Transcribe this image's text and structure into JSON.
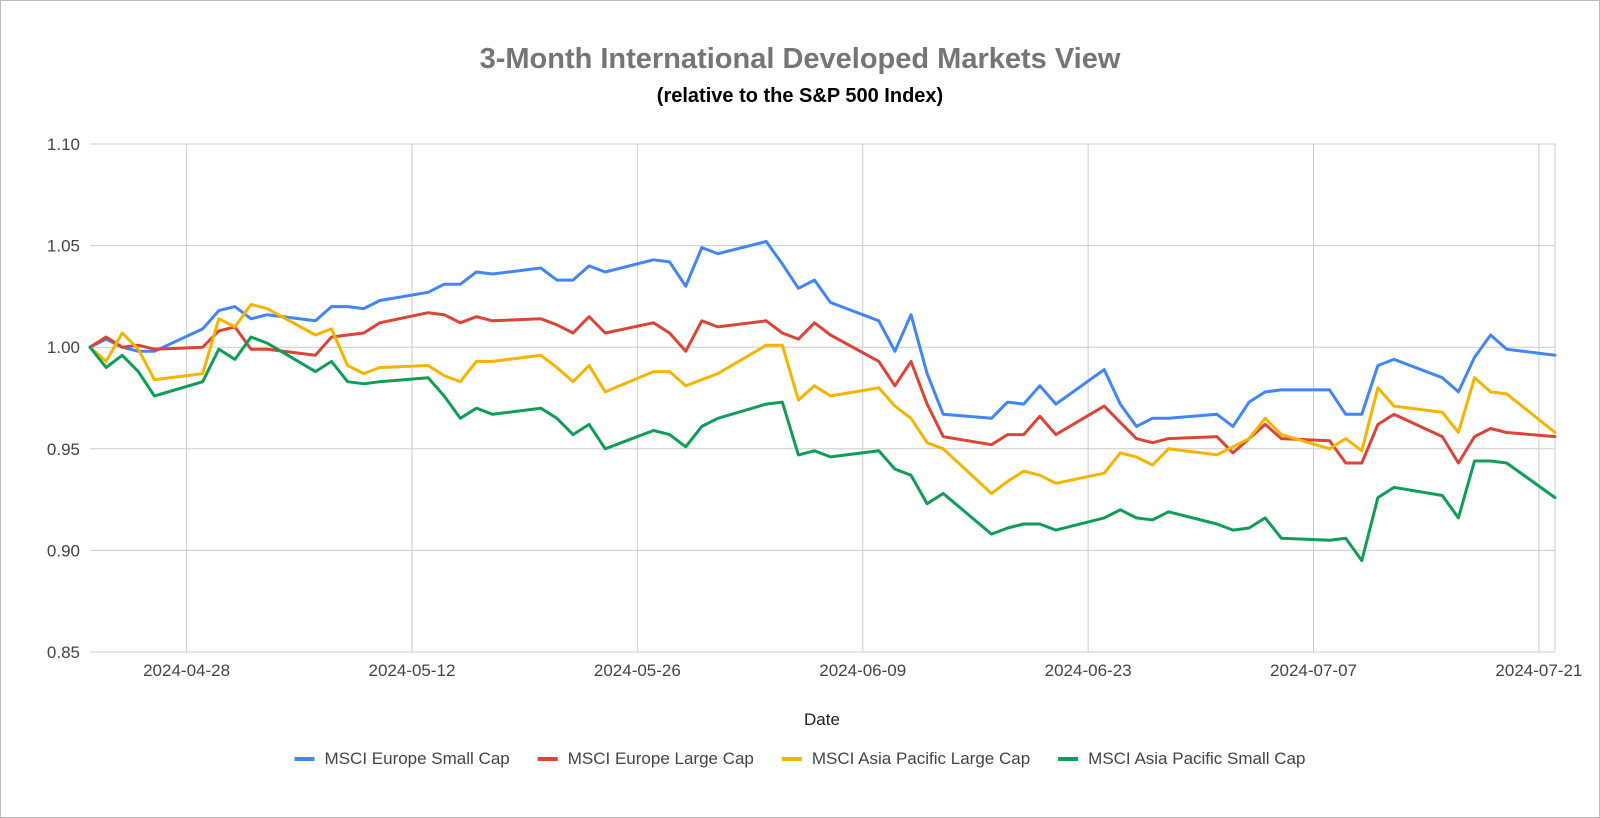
{
  "chart_data": {
    "type": "line",
    "title": "3-Month International Developed Markets View",
    "subtitle": "(relative to the S&P 500 Index)",
    "xlabel": "Date",
    "ylabel": "",
    "ylim": [
      0.85,
      1.1
    ],
    "yticks": [
      "1.10",
      "1.05",
      "1.00",
      "0.95",
      "0.90",
      "0.85"
    ],
    "ytick_values": [
      1.1,
      1.05,
      1.0,
      0.95,
      0.9,
      0.85
    ],
    "xticks": [
      "2024-04-28",
      "2024-05-12",
      "2024-05-26",
      "2024-06-09",
      "2024-06-23",
      "2024-07-07",
      "2024-07-21"
    ],
    "x_range": [
      "2024-04-22",
      "2024-07-22"
    ],
    "grid": true,
    "legend_position": "bottom",
    "series": [
      {
        "name": "MSCI Europe Small Cap",
        "color": "#4285f4",
        "points": [
          [
            "2024-04-22",
            1.0
          ],
          [
            "2024-04-23",
            1.004
          ],
          [
            "2024-04-24",
            1.0
          ],
          [
            "2024-04-25",
            0.998
          ],
          [
            "2024-04-26",
            0.998
          ],
          [
            "2024-04-29",
            1.009
          ],
          [
            "2024-04-30",
            1.018
          ],
          [
            "2024-05-01",
            1.02
          ],
          [
            "2024-05-02",
            1.014
          ],
          [
            "2024-05-03",
            1.016
          ],
          [
            "2024-05-06",
            1.013
          ],
          [
            "2024-05-07",
            1.02
          ],
          [
            "2024-05-08",
            1.02
          ],
          [
            "2024-05-09",
            1.019
          ],
          [
            "2024-05-10",
            1.023
          ],
          [
            "2024-05-13",
            1.027
          ],
          [
            "2024-05-14",
            1.031
          ],
          [
            "2024-05-15",
            1.031
          ],
          [
            "2024-05-16",
            1.037
          ],
          [
            "2024-05-17",
            1.036
          ],
          [
            "2024-05-20",
            1.039
          ],
          [
            "2024-05-21",
            1.033
          ],
          [
            "2024-05-22",
            1.033
          ],
          [
            "2024-05-23",
            1.04
          ],
          [
            "2024-05-24",
            1.037
          ],
          [
            "2024-05-27",
            1.043
          ],
          [
            "2024-05-28",
            1.042
          ],
          [
            "2024-05-29",
            1.03
          ],
          [
            "2024-05-30",
            1.049
          ],
          [
            "2024-05-31",
            1.046
          ],
          [
            "2024-06-03",
            1.052
          ],
          [
            "2024-06-04",
            1.041
          ],
          [
            "2024-06-05",
            1.029
          ],
          [
            "2024-06-06",
            1.033
          ],
          [
            "2024-06-07",
            1.022
          ],
          [
            "2024-06-10",
            1.013
          ],
          [
            "2024-06-11",
            0.998
          ],
          [
            "2024-06-12",
            1.016
          ],
          [
            "2024-06-13",
            0.987
          ],
          [
            "2024-06-14",
            0.967
          ],
          [
            "2024-06-17",
            0.965
          ],
          [
            "2024-06-18",
            0.973
          ],
          [
            "2024-06-19",
            0.972
          ],
          [
            "2024-06-20",
            0.981
          ],
          [
            "2024-06-21",
            0.972
          ],
          [
            "2024-06-24",
            0.989
          ],
          [
            "2024-06-25",
            0.972
          ],
          [
            "2024-06-26",
            0.961
          ],
          [
            "2024-06-27",
            0.965
          ],
          [
            "2024-06-28",
            0.965
          ],
          [
            "2024-07-01",
            0.967
          ],
          [
            "2024-07-02",
            0.961
          ],
          [
            "2024-07-03",
            0.973
          ],
          [
            "2024-07-04",
            0.978
          ],
          [
            "2024-07-05",
            0.979
          ],
          [
            "2024-07-08",
            0.979
          ],
          [
            "2024-07-09",
            0.967
          ],
          [
            "2024-07-10",
            0.967
          ],
          [
            "2024-07-11",
            0.991
          ],
          [
            "2024-07-12",
            0.994
          ],
          [
            "2024-07-15",
            0.985
          ],
          [
            "2024-07-16",
            0.978
          ],
          [
            "2024-07-17",
            0.995
          ],
          [
            "2024-07-18",
            1.006
          ],
          [
            "2024-07-19",
            0.999
          ],
          [
            "2024-07-22",
            0.996
          ]
        ]
      },
      {
        "name": "MSCI Europe Large Cap",
        "color": "#db4437",
        "points": [
          [
            "2024-04-22",
            1.0
          ],
          [
            "2024-04-23",
            1.005
          ],
          [
            "2024-04-24",
            1.0
          ],
          [
            "2024-04-25",
            1.001
          ],
          [
            "2024-04-26",
            0.999
          ],
          [
            "2024-04-29",
            1.0
          ],
          [
            "2024-04-30",
            1.008
          ],
          [
            "2024-05-01",
            1.01
          ],
          [
            "2024-05-02",
            0.999
          ],
          [
            "2024-05-03",
            0.999
          ],
          [
            "2024-05-06",
            0.996
          ],
          [
            "2024-05-07",
            1.005
          ],
          [
            "2024-05-08",
            1.006
          ],
          [
            "2024-05-09",
            1.007
          ],
          [
            "2024-05-10",
            1.012
          ],
          [
            "2024-05-13",
            1.017
          ],
          [
            "2024-05-14",
            1.016
          ],
          [
            "2024-05-15",
            1.012
          ],
          [
            "2024-05-16",
            1.015
          ],
          [
            "2024-05-17",
            1.013
          ],
          [
            "2024-05-20",
            1.014
          ],
          [
            "2024-05-21",
            1.011
          ],
          [
            "2024-05-22",
            1.007
          ],
          [
            "2024-05-23",
            1.015
          ],
          [
            "2024-05-24",
            1.007
          ],
          [
            "2024-05-27",
            1.012
          ],
          [
            "2024-05-28",
            1.007
          ],
          [
            "2024-05-29",
            0.998
          ],
          [
            "2024-05-30",
            1.013
          ],
          [
            "2024-05-31",
            1.01
          ],
          [
            "2024-06-03",
            1.013
          ],
          [
            "2024-06-04",
            1.007
          ],
          [
            "2024-06-05",
            1.004
          ],
          [
            "2024-06-06",
            1.012
          ],
          [
            "2024-06-07",
            1.006
          ],
          [
            "2024-06-10",
            0.993
          ],
          [
            "2024-06-11",
            0.981
          ],
          [
            "2024-06-12",
            0.993
          ],
          [
            "2024-06-13",
            0.972
          ],
          [
            "2024-06-14",
            0.956
          ],
          [
            "2024-06-17",
            0.952
          ],
          [
            "2024-06-18",
            0.957
          ],
          [
            "2024-06-19",
            0.957
          ],
          [
            "2024-06-20",
            0.966
          ],
          [
            "2024-06-21",
            0.957
          ],
          [
            "2024-06-24",
            0.971
          ],
          [
            "2024-06-25",
            0.963
          ],
          [
            "2024-06-26",
            0.955
          ],
          [
            "2024-06-27",
            0.953
          ],
          [
            "2024-06-28",
            0.955
          ],
          [
            "2024-07-01",
            0.956
          ],
          [
            "2024-07-02",
            0.948
          ],
          [
            "2024-07-03",
            0.955
          ],
          [
            "2024-07-04",
            0.962
          ],
          [
            "2024-07-05",
            0.955
          ],
          [
            "2024-07-08",
            0.954
          ],
          [
            "2024-07-09",
            0.943
          ],
          [
            "2024-07-10",
            0.943
          ],
          [
            "2024-07-11",
            0.962
          ],
          [
            "2024-07-12",
            0.967
          ],
          [
            "2024-07-15",
            0.956
          ],
          [
            "2024-07-16",
            0.943
          ],
          [
            "2024-07-17",
            0.956
          ],
          [
            "2024-07-18",
            0.96
          ],
          [
            "2024-07-19",
            0.958
          ],
          [
            "2024-07-22",
            0.956
          ]
        ]
      },
      {
        "name": "MSCI Asia Pacific Large Cap",
        "color": "#f4b400",
        "points": [
          [
            "2024-04-22",
            1.0
          ],
          [
            "2024-04-23",
            0.993
          ],
          [
            "2024-04-24",
            1.007
          ],
          [
            "2024-04-25",
            0.999
          ],
          [
            "2024-04-26",
            0.984
          ],
          [
            "2024-04-29",
            0.987
          ],
          [
            "2024-04-30",
            1.014
          ],
          [
            "2024-05-01",
            1.01
          ],
          [
            "2024-05-02",
            1.021
          ],
          [
            "2024-05-03",
            1.019
          ],
          [
            "2024-05-06",
            1.006
          ],
          [
            "2024-05-07",
            1.009
          ],
          [
            "2024-05-08",
            0.991
          ],
          [
            "2024-05-09",
            0.987
          ],
          [
            "2024-05-10",
            0.99
          ],
          [
            "2024-05-13",
            0.991
          ],
          [
            "2024-05-14",
            0.986
          ],
          [
            "2024-05-15",
            0.983
          ],
          [
            "2024-05-16",
            0.993
          ],
          [
            "2024-05-17",
            0.993
          ],
          [
            "2024-05-20",
            0.996
          ],
          [
            "2024-05-21",
            0.99
          ],
          [
            "2024-05-22",
            0.983
          ],
          [
            "2024-05-23",
            0.991
          ],
          [
            "2024-05-24",
            0.978
          ],
          [
            "2024-05-27",
            0.988
          ],
          [
            "2024-05-28",
            0.988
          ],
          [
            "2024-05-29",
            0.981
          ],
          [
            "2024-05-30",
            0.984
          ],
          [
            "2024-05-31",
            0.987
          ],
          [
            "2024-06-03",
            1.001
          ],
          [
            "2024-06-04",
            1.001
          ],
          [
            "2024-06-05",
            0.974
          ],
          [
            "2024-06-06",
            0.981
          ],
          [
            "2024-06-07",
            0.976
          ],
          [
            "2024-06-10",
            0.98
          ],
          [
            "2024-06-11",
            0.971
          ],
          [
            "2024-06-12",
            0.965
          ],
          [
            "2024-06-13",
            0.953
          ],
          [
            "2024-06-14",
            0.95
          ],
          [
            "2024-06-17",
            0.928
          ],
          [
            "2024-06-18",
            0.934
          ],
          [
            "2024-06-19",
            0.939
          ],
          [
            "2024-06-20",
            0.937
          ],
          [
            "2024-06-21",
            0.933
          ],
          [
            "2024-06-24",
            0.938
          ],
          [
            "2024-06-25",
            0.948
          ],
          [
            "2024-06-26",
            0.946
          ],
          [
            "2024-06-27",
            0.942
          ],
          [
            "2024-06-28",
            0.95
          ],
          [
            "2024-07-01",
            0.947
          ],
          [
            "2024-07-02",
            0.951
          ],
          [
            "2024-07-03",
            0.955
          ],
          [
            "2024-07-04",
            0.965
          ],
          [
            "2024-07-05",
            0.957
          ],
          [
            "2024-07-08",
            0.95
          ],
          [
            "2024-07-09",
            0.955
          ],
          [
            "2024-07-10",
            0.949
          ],
          [
            "2024-07-11",
            0.98
          ],
          [
            "2024-07-12",
            0.971
          ],
          [
            "2024-07-15",
            0.968
          ],
          [
            "2024-07-16",
            0.958
          ],
          [
            "2024-07-17",
            0.985
          ],
          [
            "2024-07-18",
            0.978
          ],
          [
            "2024-07-19",
            0.977
          ],
          [
            "2024-07-22",
            0.958
          ]
        ]
      },
      {
        "name": "MSCI Asia Pacific Small Cap",
        "color": "#0f9d58",
        "points": [
          [
            "2024-04-22",
            1.0
          ],
          [
            "2024-04-23",
            0.99
          ],
          [
            "2024-04-24",
            0.996
          ],
          [
            "2024-04-25",
            0.988
          ],
          [
            "2024-04-26",
            0.976
          ],
          [
            "2024-04-29",
            0.983
          ],
          [
            "2024-04-30",
            0.999
          ],
          [
            "2024-05-01",
            0.994
          ],
          [
            "2024-05-02",
            1.005
          ],
          [
            "2024-05-03",
            1.002
          ],
          [
            "2024-05-06",
            0.988
          ],
          [
            "2024-05-07",
            0.993
          ],
          [
            "2024-05-08",
            0.983
          ],
          [
            "2024-05-09",
            0.982
          ],
          [
            "2024-05-10",
            0.983
          ],
          [
            "2024-05-13",
            0.985
          ],
          [
            "2024-05-14",
            0.976
          ],
          [
            "2024-05-15",
            0.965
          ],
          [
            "2024-05-16",
            0.97
          ],
          [
            "2024-05-17",
            0.967
          ],
          [
            "2024-05-20",
            0.97
          ],
          [
            "2024-05-21",
            0.965
          ],
          [
            "2024-05-22",
            0.957
          ],
          [
            "2024-05-23",
            0.962
          ],
          [
            "2024-05-24",
            0.95
          ],
          [
            "2024-05-27",
            0.959
          ],
          [
            "2024-05-28",
            0.957
          ],
          [
            "2024-05-29",
            0.951
          ],
          [
            "2024-05-30",
            0.961
          ],
          [
            "2024-05-31",
            0.965
          ],
          [
            "2024-06-03",
            0.972
          ],
          [
            "2024-06-04",
            0.973
          ],
          [
            "2024-06-05",
            0.947
          ],
          [
            "2024-06-06",
            0.949
          ],
          [
            "2024-06-07",
            0.946
          ],
          [
            "2024-06-10",
            0.949
          ],
          [
            "2024-06-11",
            0.94
          ],
          [
            "2024-06-12",
            0.937
          ],
          [
            "2024-06-13",
            0.923
          ],
          [
            "2024-06-14",
            0.928
          ],
          [
            "2024-06-17",
            0.908
          ],
          [
            "2024-06-18",
            0.911
          ],
          [
            "2024-06-19",
            0.913
          ],
          [
            "2024-06-20",
            0.913
          ],
          [
            "2024-06-21",
            0.91
          ],
          [
            "2024-06-24",
            0.916
          ],
          [
            "2024-06-25",
            0.92
          ],
          [
            "2024-06-26",
            0.916
          ],
          [
            "2024-06-27",
            0.915
          ],
          [
            "2024-06-28",
            0.919
          ],
          [
            "2024-07-01",
            0.913
          ],
          [
            "2024-07-02",
            0.91
          ],
          [
            "2024-07-03",
            0.911
          ],
          [
            "2024-07-04",
            0.916
          ],
          [
            "2024-07-05",
            0.906
          ],
          [
            "2024-07-08",
            0.905
          ],
          [
            "2024-07-09",
            0.906
          ],
          [
            "2024-07-10",
            0.895
          ],
          [
            "2024-07-11",
            0.926
          ],
          [
            "2024-07-12",
            0.931
          ],
          [
            "2024-07-15",
            0.927
          ],
          [
            "2024-07-16",
            0.916
          ],
          [
            "2024-07-17",
            0.944
          ],
          [
            "2024-07-18",
            0.944
          ],
          [
            "2024-07-19",
            0.943
          ],
          [
            "2024-07-22",
            0.926
          ]
        ]
      }
    ]
  }
}
